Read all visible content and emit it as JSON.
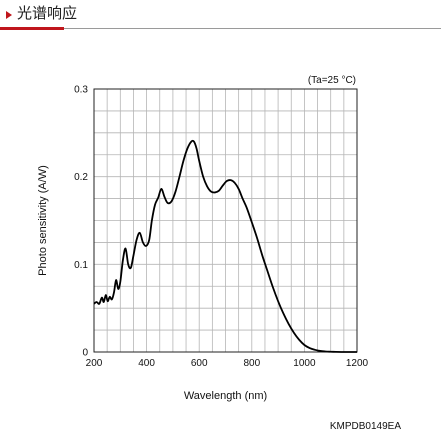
{
  "header": {
    "title": "光谱响应"
  },
  "chart_data": {
    "type": "line",
    "title": "",
    "annotation": "(Ta=25 °C)",
    "xlabel": "Wavelength (nm)",
    "ylabel": "Photo sensitivity (A/W)",
    "xlim": [
      200,
      1200
    ],
    "ylim": [
      0,
      0.3
    ],
    "xticks": [
      200,
      400,
      600,
      800,
      1000,
      1200
    ],
    "yticks": [
      0,
      0.1,
      0.2,
      0.3
    ],
    "grid": true,
    "series": [
      {
        "color": "#000000",
        "x": [
          200,
          210,
          220,
          230,
          237,
          245,
          252,
          260,
          268,
          276,
          284,
          292,
          300,
          310,
          320,
          330,
          340,
          350,
          362,
          374,
          386,
          398,
          410,
          420,
          432,
          444,
          456,
          468,
          480,
          495,
          510,
          525,
          540,
          555,
          570,
          580,
          590,
          600,
          615,
          630,
          645,
          660,
          675,
          690,
          705,
          720,
          735,
          750,
          765,
          780,
          800,
          820,
          840,
          860,
          880,
          900,
          920,
          940,
          960,
          980,
          1000,
          1020,
          1040,
          1060,
          1080,
          1100,
          1120,
          1140,
          1160,
          1180,
          1200
        ],
        "y": [
          0.055,
          0.057,
          0.055,
          0.062,
          0.057,
          0.065,
          0.058,
          0.063,
          0.06,
          0.068,
          0.082,
          0.072,
          0.08,
          0.105,
          0.118,
          0.1,
          0.096,
          0.11,
          0.128,
          0.136,
          0.125,
          0.121,
          0.128,
          0.15,
          0.168,
          0.176,
          0.186,
          0.177,
          0.17,
          0.172,
          0.183,
          0.2,
          0.218,
          0.232,
          0.24,
          0.24,
          0.232,
          0.218,
          0.2,
          0.189,
          0.183,
          0.182,
          0.184,
          0.19,
          0.195,
          0.196,
          0.193,
          0.186,
          0.175,
          0.165,
          0.148,
          0.13,
          0.11,
          0.092,
          0.074,
          0.058,
          0.044,
          0.032,
          0.022,
          0.014,
          0.008,
          0.0045,
          0.0025,
          0.0012,
          0.0006,
          0.0003,
          0.0001,
          0,
          0,
          0,
          0
        ]
      }
    ]
  },
  "footer": {
    "doc_code": "KMPDB0149EA"
  }
}
